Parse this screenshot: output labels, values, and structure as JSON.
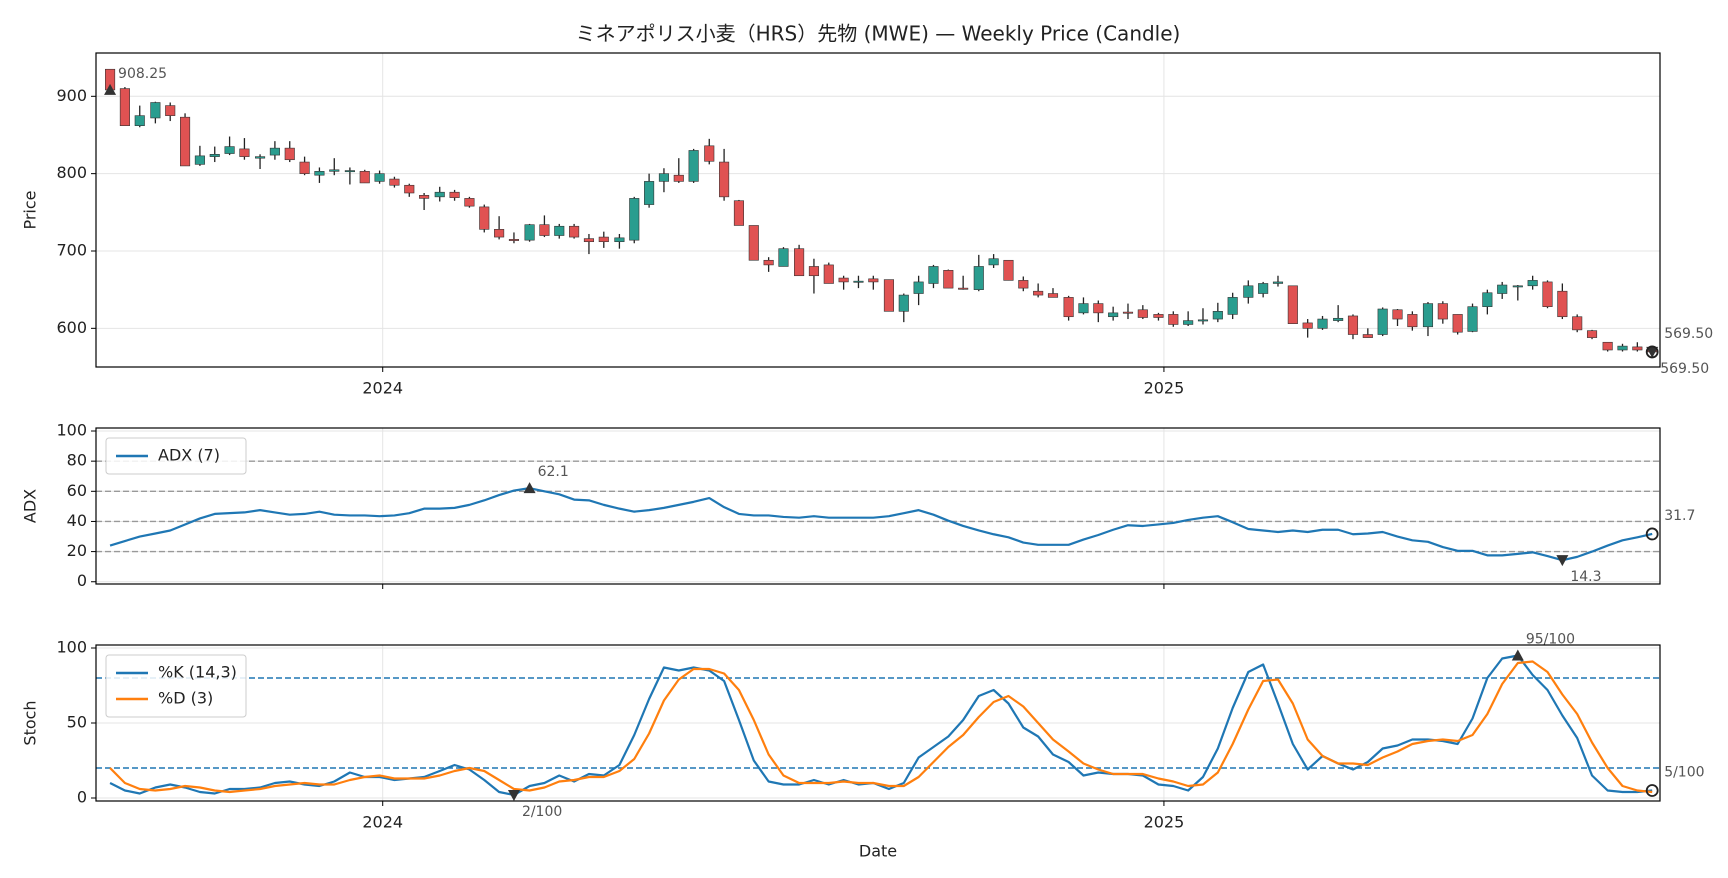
{
  "chart_data": {
    "type": "candlestick",
    "title": "ミネアポリス小麦（HRS）先物 (MWE) — Weekly Price (Candle)",
    "xlabel": "Date",
    "xlim": [
      2023.633,
      2025.635
    ],
    "xticks": [
      2024,
      2025
    ],
    "x": [
      2023.651,
      2023.67,
      2023.689,
      2023.709,
      2023.728,
      2023.747,
      2023.766,
      2023.785,
      2023.804,
      2023.823,
      2023.843,
      2023.862,
      2023.881,
      2023.9,
      2023.919,
      2023.938,
      2023.958,
      2023.977,
      2023.996,
      2024.015,
      2024.034,
      2024.053,
      2024.073,
      2024.092,
      2024.111,
      2024.13,
      2024.149,
      2024.168,
      2024.188,
      2024.207,
      2024.226,
      2024.245,
      2024.264,
      2024.283,
      2024.303,
      2024.322,
      2024.341,
      2024.36,
      2024.379,
      2024.398,
      2024.418,
      2024.437,
      2024.456,
      2024.475,
      2024.494,
      2024.513,
      2024.533,
      2024.552,
      2024.571,
      2024.59,
      2024.609,
      2024.628,
      2024.648,
      2024.667,
      2024.686,
      2024.705,
      2024.724,
      2024.743,
      2024.763,
      2024.782,
      2024.801,
      2024.82,
      2024.839,
      2024.858,
      2024.878,
      2024.897,
      2024.916,
      2024.935,
      2024.954,
      2024.973,
      2024.993,
      2025.012,
      2025.031,
      2025.05,
      2025.069,
      2025.088,
      2025.108,
      2025.127,
      2025.146,
      2025.165,
      2025.184,
      2025.203,
      2025.223,
      2025.242,
      2025.261,
      2025.28,
      2025.299,
      2025.318,
      2025.338,
      2025.357,
      2025.376,
      2025.395,
      2025.414,
      2025.433,
      2025.453,
      2025.472,
      2025.491,
      2025.51,
      2025.529,
      2025.548,
      2025.568,
      2025.587,
      2025.606,
      2025.625
    ],
    "panels": [
      {
        "type": "candlestick",
        "ylabel": "Price",
        "ylim": [
          550,
          956
        ],
        "yticks": [
          600,
          700,
          800,
          900
        ],
        "grid": true,
        "xtick_labels": true,
        "up_color": "#2a9d8f",
        "down_color": "#e05252",
        "wick_color": "#222222",
        "open": [
          935,
          910,
          862,
          872,
          888,
          873,
          812,
          822,
          826,
          832,
          820,
          824,
          833,
          815,
          798,
          803,
          803,
          803,
          790,
          793,
          785,
          772,
          770,
          776,
          768,
          757,
          728,
          715,
          714,
          734,
          720,
          732,
          716,
          718,
          712,
          714,
          760,
          790,
          798,
          790,
          836,
          815,
          765,
          733,
          688,
          680,
          703,
          680,
          682,
          665,
          660,
          664,
          663,
          622,
          645,
          658,
          675,
          652,
          650,
          682,
          688,
          662,
          648,
          645,
          640,
          620,
          632,
          615,
          621,
          624,
          618,
          618,
          605,
          610,
          612,
          618,
          640,
          645,
          658,
          655,
          607,
          600,
          610,
          616,
          592,
          592,
          624,
          618,
          602,
          632,
          618,
          596,
          628,
          645,
          654,
          655,
          660,
          648,
          615,
          597,
          582,
          572,
          576,
          572
        ],
        "high": [
          935,
          912,
          888,
          893,
          892,
          878,
          836,
          835,
          848,
          846,
          825,
          842,
          842,
          822,
          808,
          820,
          808,
          805,
          804,
          796,
          787,
          775,
          783,
          779,
          770,
          760,
          745,
          724,
          735,
          746,
          735,
          735,
          722,
          725,
          722,
          770,
          800,
          807,
          820,
          832,
          845,
          832,
          766,
          733,
          692,
          705,
          708,
          690,
          685,
          668,
          668,
          668,
          663,
          645,
          668,
          682,
          676,
          668,
          695,
          696,
          688,
          667,
          658,
          652,
          642,
          640,
          636,
          628,
          632,
          630,
          620,
          622,
          622,
          626,
          633,
          646,
          662,
          660,
          668,
          655,
          612,
          616,
          630,
          618,
          600,
          627,
          625,
          622,
          634,
          635,
          618,
          632,
          650,
          660,
          656,
          668,
          662,
          658,
          618,
          598,
          582,
          580,
          582,
          574
        ],
        "low": [
          905,
          862,
          860,
          865,
          868,
          810,
          810,
          815,
          824,
          818,
          806,
          818,
          815,
          798,
          788,
          798,
          786,
          788,
          787,
          782,
          770,
          753,
          764,
          765,
          756,
          724,
          715,
          710,
          712,
          718,
          716,
          716,
          696,
          704,
          703,
          710,
          756,
          776,
          788,
          788,
          812,
          765,
          733,
          688,
          673,
          680,
          668,
          645,
          658,
          650,
          652,
          650,
          622,
          608,
          630,
          652,
          652,
          650,
          648,
          678,
          662,
          648,
          640,
          640,
          610,
          618,
          608,
          610,
          612,
          612,
          610,
          602,
          603,
          605,
          608,
          612,
          632,
          640,
          654,
          606,
          588,
          598,
          608,
          586,
          588,
          590,
          603,
          597,
          590,
          606,
          592,
          595,
          618,
          638,
          636,
          650,
          626,
          612,
          595,
          586,
          570,
          570,
          570,
          568
        ],
        "close": [
          908.25,
          862,
          875,
          892,
          875,
          810,
          823,
          825,
          835,
          822,
          822,
          833,
          818,
          800,
          803,
          805,
          804,
          788,
          800,
          785,
          775,
          768,
          776,
          769,
          758,
          728,
          718,
          714,
          734,
          720,
          732,
          718,
          712,
          712,
          717,
          768,
          790,
          800,
          790,
          830,
          816,
          770,
          733,
          688,
          682,
          703,
          668,
          668,
          658,
          660,
          661,
          660,
          622,
          643,
          660,
          680,
          652,
          651,
          680,
          690,
          662,
          652,
          643,
          640,
          615,
          632,
          620,
          620,
          620,
          614,
          614,
          605,
          610,
          611,
          622,
          640,
          655,
          658,
          660,
          606,
          600,
          612,
          613,
          592,
          588,
          625,
          612,
          602,
          632,
          612,
          595,
          628,
          646,
          656,
          655,
          662,
          628,
          615,
          598,
          588,
          572,
          577,
          572,
          569.5
        ],
        "annotations": [
          {
            "kind": "max",
            "value": 908.25
          },
          {
            "kind": "min",
            "value": 569.5,
            "label": "569.50"
          },
          {
            "kind": "last",
            "value": 569.5,
            "label": "569.50"
          }
        ]
      },
      {
        "type": "line",
        "ylabel": "ADX",
        "ylim": [
          -1.5,
          102
        ],
        "yticks": [
          0,
          20,
          40,
          60,
          80,
          100
        ],
        "grid": true,
        "xtick_labels": false,
        "legend": "upper left",
        "hlines": [
          20,
          40,
          60,
          80
        ],
        "hline_color": "#999999",
        "series": [
          {
            "name": "ADX (7)",
            "color": "#1f77b4",
            "values": [
              24,
              27,
              30,
              32,
              34,
              38,
              42,
              45,
              45.5,
              46,
              47.5,
              46,
              44.5,
              45,
              46.5,
              44.5,
              44,
              44,
              43.5,
              44,
              45.5,
              48.5,
              48.5,
              49,
              51,
              54,
              57.5,
              60.5,
              62.1,
              60,
              58,
              54.5,
              54,
              51,
              48.5,
              46.5,
              47.5,
              49,
              51,
              53,
              55.5,
              49.5,
              45,
              44,
              44,
              43,
              42.5,
              43.5,
              42.5,
              42.5,
              42.5,
              42.5,
              43.5,
              45.5,
              47.5,
              44.5,
              40.5,
              37,
              34,
              31.5,
              29.5,
              26,
              24.5,
              24.5,
              24.5,
              28,
              31,
              34.5,
              37.5,
              37,
              38,
              39,
              41,
              42.5,
              43.5,
              39.5,
              35,
              34,
              33,
              34,
              33,
              34.5,
              34.5,
              31.5,
              32,
              33,
              30,
              27.5,
              26.5,
              23,
              20.5,
              20.5,
              17.5,
              17.5,
              18.5,
              19.5,
              17,
              14.3,
              16.5,
              20,
              24,
              27.5,
              29.5,
              31.7
            ],
            "annotations": [
              {
                "kind": "max",
                "value": 62.1
              },
              {
                "kind": "min",
                "value": 14.3
              },
              {
                "kind": "last",
                "value": 31.7
              }
            ]
          }
        ]
      },
      {
        "type": "line",
        "ylabel": "Stoch",
        "ylim": [
          -2,
          102
        ],
        "yticks": [
          0,
          50,
          100
        ],
        "grid": true,
        "xtick_labels": true,
        "legend": "upper left",
        "hlines": [
          20,
          80
        ],
        "hline_color": "#1f77b4",
        "series": [
          {
            "name": "%K (14,3)",
            "color": "#1f77b4",
            "values": [
              10,
              5,
              3,
              7,
              9,
              7,
              4,
              3,
              6,
              6,
              7,
              10,
              11,
              9,
              8,
              11,
              17,
              14,
              14,
              12,
              13,
              14,
              18,
              22,
              19,
              12,
              4,
              2,
              8,
              10,
              15,
              11,
              16,
              15,
              22,
              42,
              66,
              87,
              85,
              87,
              85,
              78,
              52,
              25,
              11,
              9,
              9,
              12,
              9,
              12,
              9,
              10,
              6,
              10,
              27,
              34,
              41,
              52,
              68,
              72,
              63,
              47,
              41,
              29,
              24,
              15,
              17,
              16,
              16,
              15,
              9,
              8,
              5,
              14,
              33,
              60,
              84,
              89,
              63,
              36,
              19,
              28,
              23,
              19,
              24,
              33,
              35,
              39,
              39,
              38,
              36,
              53,
              80,
              93,
              95,
              82,
              72,
              55,
              40,
              15,
              5,
              4,
              4,
              5
            ],
            "annotations": [
              {
                "kind": "max",
                "value": 95,
                "label": "95/100"
              },
              {
                "kind": "min",
                "value": 2,
                "label": "2/100"
              },
              {
                "kind": "last",
                "value": 5,
                "label": "5/100"
              }
            ]
          },
          {
            "name": "%D (3)",
            "color": "#ff7f0e",
            "values": [
              20,
              10,
              6,
              5,
              6,
              8,
              7,
              5,
              4,
              5,
              6,
              8,
              9,
              10,
              9,
              9,
              12,
              14,
              15,
              13,
              13,
              13,
              15,
              18,
              20,
              18,
              12,
              6,
              5,
              7,
              11,
              12,
              14,
              14,
              18,
              26,
              43,
              65,
              79,
              86,
              86,
              83,
              72,
              52,
              29,
              15,
              10,
              10,
              10,
              11,
              10,
              10,
              8,
              8,
              14,
              24,
              34,
              42,
              54,
              64,
              68,
              61,
              50,
              39,
              31,
              23,
              19,
              16,
              16,
              16,
              13,
              11,
              8,
              9,
              17,
              36,
              59,
              78,
              79,
              63,
              39,
              28,
              23,
              23,
              22,
              27,
              31,
              36,
              38,
              39,
              38,
              42,
              56,
              76,
              90,
              91,
              84,
              69,
              56,
              37,
              20,
              8,
              5,
              4
            ]
          }
        ]
      }
    ]
  }
}
